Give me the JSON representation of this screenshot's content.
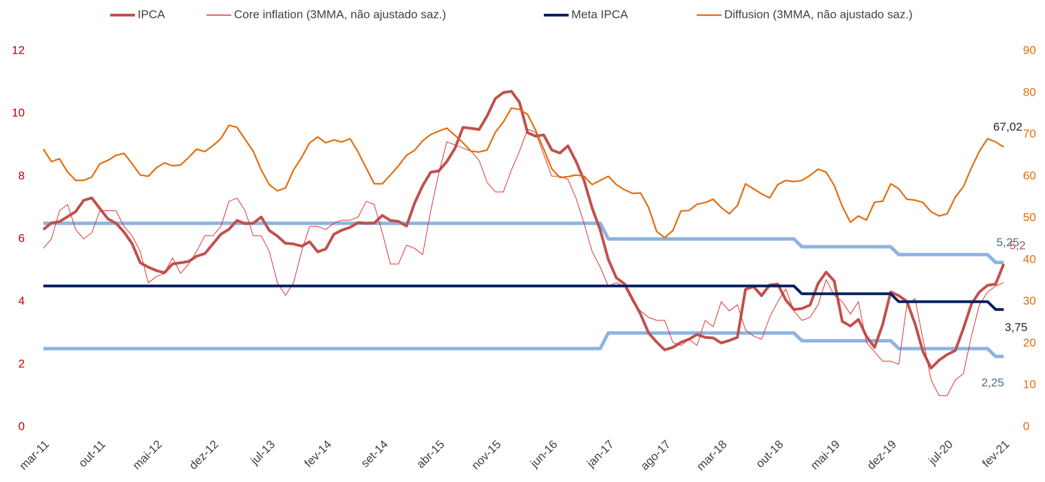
{
  "chart_data": {
    "type": "line",
    "categories": [
      "mar-11",
      null,
      null,
      null,
      null,
      null,
      null,
      "out-11",
      null,
      null,
      null,
      null,
      null,
      null,
      "mai-12",
      null,
      null,
      null,
      null,
      null,
      null,
      "dez-12",
      null,
      null,
      null,
      null,
      null,
      null,
      "jul-13",
      null,
      null,
      null,
      null,
      null,
      null,
      "fev-14",
      null,
      null,
      null,
      null,
      null,
      null,
      "set-14",
      null,
      null,
      null,
      null,
      null,
      null,
      "abr-15",
      null,
      null,
      null,
      null,
      null,
      null,
      "nov-15",
      null,
      null,
      null,
      null,
      null,
      null,
      "jun-16",
      null,
      null,
      null,
      null,
      null,
      null,
      "jan-17",
      null,
      null,
      null,
      null,
      null,
      null,
      "ago-17",
      null,
      null,
      null,
      null,
      null,
      null,
      "mar-18",
      null,
      null,
      null,
      null,
      null,
      null,
      "out-18",
      null,
      null,
      null,
      null,
      null,
      null,
      "mai-19",
      null,
      null,
      null,
      null,
      null,
      null,
      "dez-19",
      null,
      null,
      null,
      null,
      null,
      null,
      "jul-20",
      null,
      null,
      null,
      null,
      null,
      null,
      "fev-21"
    ],
    "ylim": [
      0,
      12
    ],
    "yticks": [
      0,
      2,
      4,
      6,
      8,
      10,
      12
    ],
    "y2lim": [
      0,
      90
    ],
    "y2ticks": [
      0,
      10,
      20,
      30,
      40,
      50,
      60,
      70,
      80,
      90
    ],
    "grid": false,
    "legend": "top",
    "series": [
      {
        "values": [
          6.5,
          6.5,
          6.5,
          6.5,
          6.5,
          6.5,
          6.5,
          6.5,
          6.5,
          6.5,
          6.5,
          6.5,
          6.5,
          6.5,
          6.5,
          6.5,
          6.5,
          6.5,
          6.5,
          6.5,
          6.5,
          6.5,
          6.5,
          6.5,
          6.5,
          6.5,
          6.5,
          6.5,
          6.5,
          6.5,
          6.5,
          6.5,
          6.5,
          6.5,
          6.5,
          6.5,
          6.5,
          6.5,
          6.5,
          6.5,
          6.5,
          6.5,
          6.5,
          6.5,
          6.5,
          6.5,
          6.5,
          6.5,
          6.5,
          6.5,
          6.5,
          6.5,
          6.5,
          6.5,
          6.5,
          6.5,
          6.5,
          6.5,
          6.5,
          6.5,
          6.5,
          6.5,
          6.5,
          6.5,
          6.5,
          6.5,
          6.5,
          6.5,
          6.5,
          6.5,
          6,
          6,
          6,
          6,
          6,
          6,
          6,
          6,
          6,
          6,
          6,
          6,
          6,
          6,
          6,
          6,
          6,
          6,
          6,
          6,
          6,
          6,
          6,
          6,
          5.75,
          5.75,
          5.75,
          5.75,
          5.75,
          5.75,
          5.75,
          5.75,
          5.75,
          5.75,
          5.75,
          5.75,
          5.5,
          5.5,
          5.5,
          5.5,
          5.5,
          5.5,
          5.5,
          5.5,
          5.5,
          5.5,
          5.5,
          5.5,
          5.25,
          5.25
        ],
        "color": "#8db4e2",
        "value_labels": {
          "119": "5,25"
        }
      },
      {
        "values": [
          2.5,
          2.5,
          2.5,
          2.5,
          2.5,
          2.5,
          2.5,
          2.5,
          2.5,
          2.5,
          2.5,
          2.5,
          2.5,
          2.5,
          2.5,
          2.5,
          2.5,
          2.5,
          2.5,
          2.5,
          2.5,
          2.5,
          2.5,
          2.5,
          2.5,
          2.5,
          2.5,
          2.5,
          2.5,
          2.5,
          2.5,
          2.5,
          2.5,
          2.5,
          2.5,
          2.5,
          2.5,
          2.5,
          2.5,
          2.5,
          2.5,
          2.5,
          2.5,
          2.5,
          2.5,
          2.5,
          2.5,
          2.5,
          2.5,
          2.5,
          2.5,
          2.5,
          2.5,
          2.5,
          2.5,
          2.5,
          2.5,
          2.5,
          2.5,
          2.5,
          2.5,
          2.5,
          2.5,
          2.5,
          2.5,
          2.5,
          2.5,
          2.5,
          2.5,
          2.5,
          3,
          3,
          3,
          3,
          3,
          3,
          3,
          3,
          3,
          3,
          3,
          3,
          3,
          3,
          3,
          3,
          3,
          3,
          3,
          3,
          3,
          3,
          3,
          3,
          2.75,
          2.75,
          2.75,
          2.75,
          2.75,
          2.75,
          2.75,
          2.75,
          2.75,
          2.75,
          2.75,
          2.75,
          2.5,
          2.5,
          2.5,
          2.5,
          2.5,
          2.5,
          2.5,
          2.5,
          2.5,
          2.5,
          2.5,
          2.5,
          2.25,
          2.25
        ],
        "color": "#8db4e2",
        "value_labels": {
          "119": "2,25"
        }
      },
      {
        "name": "IPCA",
        "color": "#c0504d",
        "values": [
          6.3,
          6.51,
          6.55,
          6.71,
          6.87,
          7.23,
          7.31,
          6.97,
          6.64,
          6.5,
          6.22,
          5.85,
          5.24,
          5.1,
          4.99,
          4.92,
          5.2,
          5.24,
          5.28,
          5.45,
          5.53,
          5.84,
          6.15,
          6.31,
          6.59,
          6.49,
          6.5,
          6.7,
          6.27,
          6.09,
          5.86,
          5.84,
          5.77,
          5.91,
          5.59,
          5.68,
          6.15,
          6.28,
          6.37,
          6.52,
          6.5,
          6.51,
          6.75,
          6.59,
          6.56,
          6.41,
          7.14,
          7.7,
          8.13,
          8.17,
          8.47,
          8.89,
          9.56,
          9.53,
          9.49,
          9.93,
          10.48,
          10.67,
          10.71,
          10.36,
          9.39,
          9.28,
          9.32,
          8.84,
          8.74,
          8.97,
          8.48,
          7.87,
          6.99,
          6.29,
          5.35,
          4.76,
          4.57,
          4.08,
          3.6,
          3.0,
          2.71,
          2.46,
          2.54,
          2.7,
          2.8,
          2.95,
          2.86,
          2.84,
          2.68,
          2.76,
          2.86,
          4.39,
          4.48,
          4.19,
          4.53,
          4.56,
          4.05,
          3.75,
          3.78,
          3.89,
          4.58,
          4.94,
          4.66,
          3.37,
          3.22,
          3.43,
          2.89,
          2.54,
          3.27,
          4.31,
          4.19,
          4.01,
          3.3,
          2.4,
          1.88,
          2.13,
          2.31,
          2.44,
          3.14,
          3.92,
          4.31,
          4.52,
          4.56,
          5.2
        ],
        "value_labels": {
          "119": "5,2"
        }
      },
      {
        "name": "Core inflation (3MMA, não ajustado saz.)",
        "color": "#e03030",
        "values": [
          5.7,
          6.0,
          6.9,
          7.1,
          6.3,
          6.0,
          6.2,
          6.9,
          6.9,
          6.9,
          6.4,
          6.1,
          5.6,
          4.6,
          4.8,
          4.9,
          5.4,
          4.9,
          5.2,
          5.6,
          6.1,
          6.1,
          6.4,
          7.2,
          7.3,
          6.9,
          6.1,
          6.1,
          5.6,
          4.6,
          4.2,
          4.6,
          5.6,
          6.4,
          6.4,
          6.3,
          6.5,
          6.6,
          6.6,
          6.7,
          7.2,
          7.1,
          6.2,
          5.2,
          5.2,
          5.8,
          5.7,
          5.5,
          6.9,
          8.1,
          9.1,
          9.0,
          8.9,
          8.8,
          8.5,
          7.8,
          7.5,
          7.5,
          8.2,
          8.8,
          9.5,
          9.4,
          8.7,
          8.0,
          8.0,
          7.9,
          7.3,
          6.5,
          5.6,
          5.1,
          4.5,
          4.6,
          4.5,
          4.0,
          3.7,
          3.5,
          3.4,
          3.4,
          2.7,
          2.6,
          2.8,
          2.6,
          3.4,
          3.2,
          4.0,
          3.7,
          3.9,
          3.1,
          2.9,
          2.8,
          3.5,
          4.0,
          4.4,
          3.7,
          3.4,
          3.5,
          3.9,
          4.7,
          4.2,
          4.0,
          3.6,
          4.0,
          2.7,
          2.4,
          2.1,
          2.1,
          2.0,
          3.9,
          4.1,
          2.8,
          1.5,
          1.0,
          1.0,
          1.5,
          1.7,
          2.9,
          3.9,
          4.3,
          4.5,
          4.6
        ]
      },
      {
        "name": "Meta IPCA",
        "color": "#002060",
        "values": [
          4.5,
          4.5,
          4.5,
          4.5,
          4.5,
          4.5,
          4.5,
          4.5,
          4.5,
          4.5,
          4.5,
          4.5,
          4.5,
          4.5,
          4.5,
          4.5,
          4.5,
          4.5,
          4.5,
          4.5,
          4.5,
          4.5,
          4.5,
          4.5,
          4.5,
          4.5,
          4.5,
          4.5,
          4.5,
          4.5,
          4.5,
          4.5,
          4.5,
          4.5,
          4.5,
          4.5,
          4.5,
          4.5,
          4.5,
          4.5,
          4.5,
          4.5,
          4.5,
          4.5,
          4.5,
          4.5,
          4.5,
          4.5,
          4.5,
          4.5,
          4.5,
          4.5,
          4.5,
          4.5,
          4.5,
          4.5,
          4.5,
          4.5,
          4.5,
          4.5,
          4.5,
          4.5,
          4.5,
          4.5,
          4.5,
          4.5,
          4.5,
          4.5,
          4.5,
          4.5,
          4.5,
          4.5,
          4.5,
          4.5,
          4.5,
          4.5,
          4.5,
          4.5,
          4.5,
          4.5,
          4.5,
          4.5,
          4.5,
          4.5,
          4.5,
          4.5,
          4.5,
          4.5,
          4.5,
          4.5,
          4.5,
          4.5,
          4.5,
          4.5,
          4.25,
          4.25,
          4.25,
          4.25,
          4.25,
          4.25,
          4.25,
          4.25,
          4.25,
          4.25,
          4.25,
          4.25,
          4,
          4,
          4,
          4,
          4,
          4,
          4,
          4,
          4,
          4,
          4,
          4,
          3.75,
          3.75
        ],
        "value_labels": {
          "119": "3,75"
        }
      },
      {
        "name": "Diffusion (3MMA, não ajustado saz.)",
        "color": "#e46c0a",
        "axis": "y2",
        "values": [
          66.5,
          63.5,
          64.2,
          61.0,
          59.0,
          59.0,
          59.8,
          63.0,
          63.8,
          65.0,
          65.5,
          63.0,
          60.3,
          60.0,
          62.0,
          63.2,
          62.5,
          62.7,
          64.5,
          66.5,
          65.9,
          67.3,
          69.0,
          72.2,
          71.7,
          68.8,
          66.0,
          61.5,
          58.0,
          56.5,
          57.2,
          61.5,
          64.5,
          68.0,
          69.4,
          68.0,
          68.7,
          68.2,
          69.0,
          65.8,
          62.0,
          58.2,
          58.2,
          60.3,
          62.5,
          65.0,
          66.2,
          68.5,
          70.0,
          70.8,
          71.5,
          69.8,
          68.0,
          66.0,
          65.8,
          66.3,
          70.5,
          73.0,
          76.3,
          76.0,
          74.8,
          71.0,
          66.5,
          61.8,
          59.7,
          59.9,
          60.3,
          60.0,
          58.0,
          59.0,
          60.0,
          58.0,
          56.8,
          55.9,
          56.0,
          52.5,
          46.8,
          45.3,
          47.0,
          51.7,
          51.8,
          53.3,
          53.7,
          54.5,
          52.5,
          51.0,
          53.0,
          58.2,
          57.0,
          55.8,
          54.8,
          58.0,
          59.0,
          58.7,
          59.0,
          60.2,
          61.7,
          61.0,
          57.8,
          52.8,
          49.0,
          50.5,
          49.5,
          53.8,
          54.0,
          58.2,
          57.0,
          54.5,
          54.3,
          53.7,
          51.5,
          50.5,
          51.0,
          55.0,
          57.5,
          62.0,
          66.0,
          69.0,
          68.2,
          67.02
        ],
        "value_labels": {
          "119": "67,02"
        }
      }
    ]
  }
}
